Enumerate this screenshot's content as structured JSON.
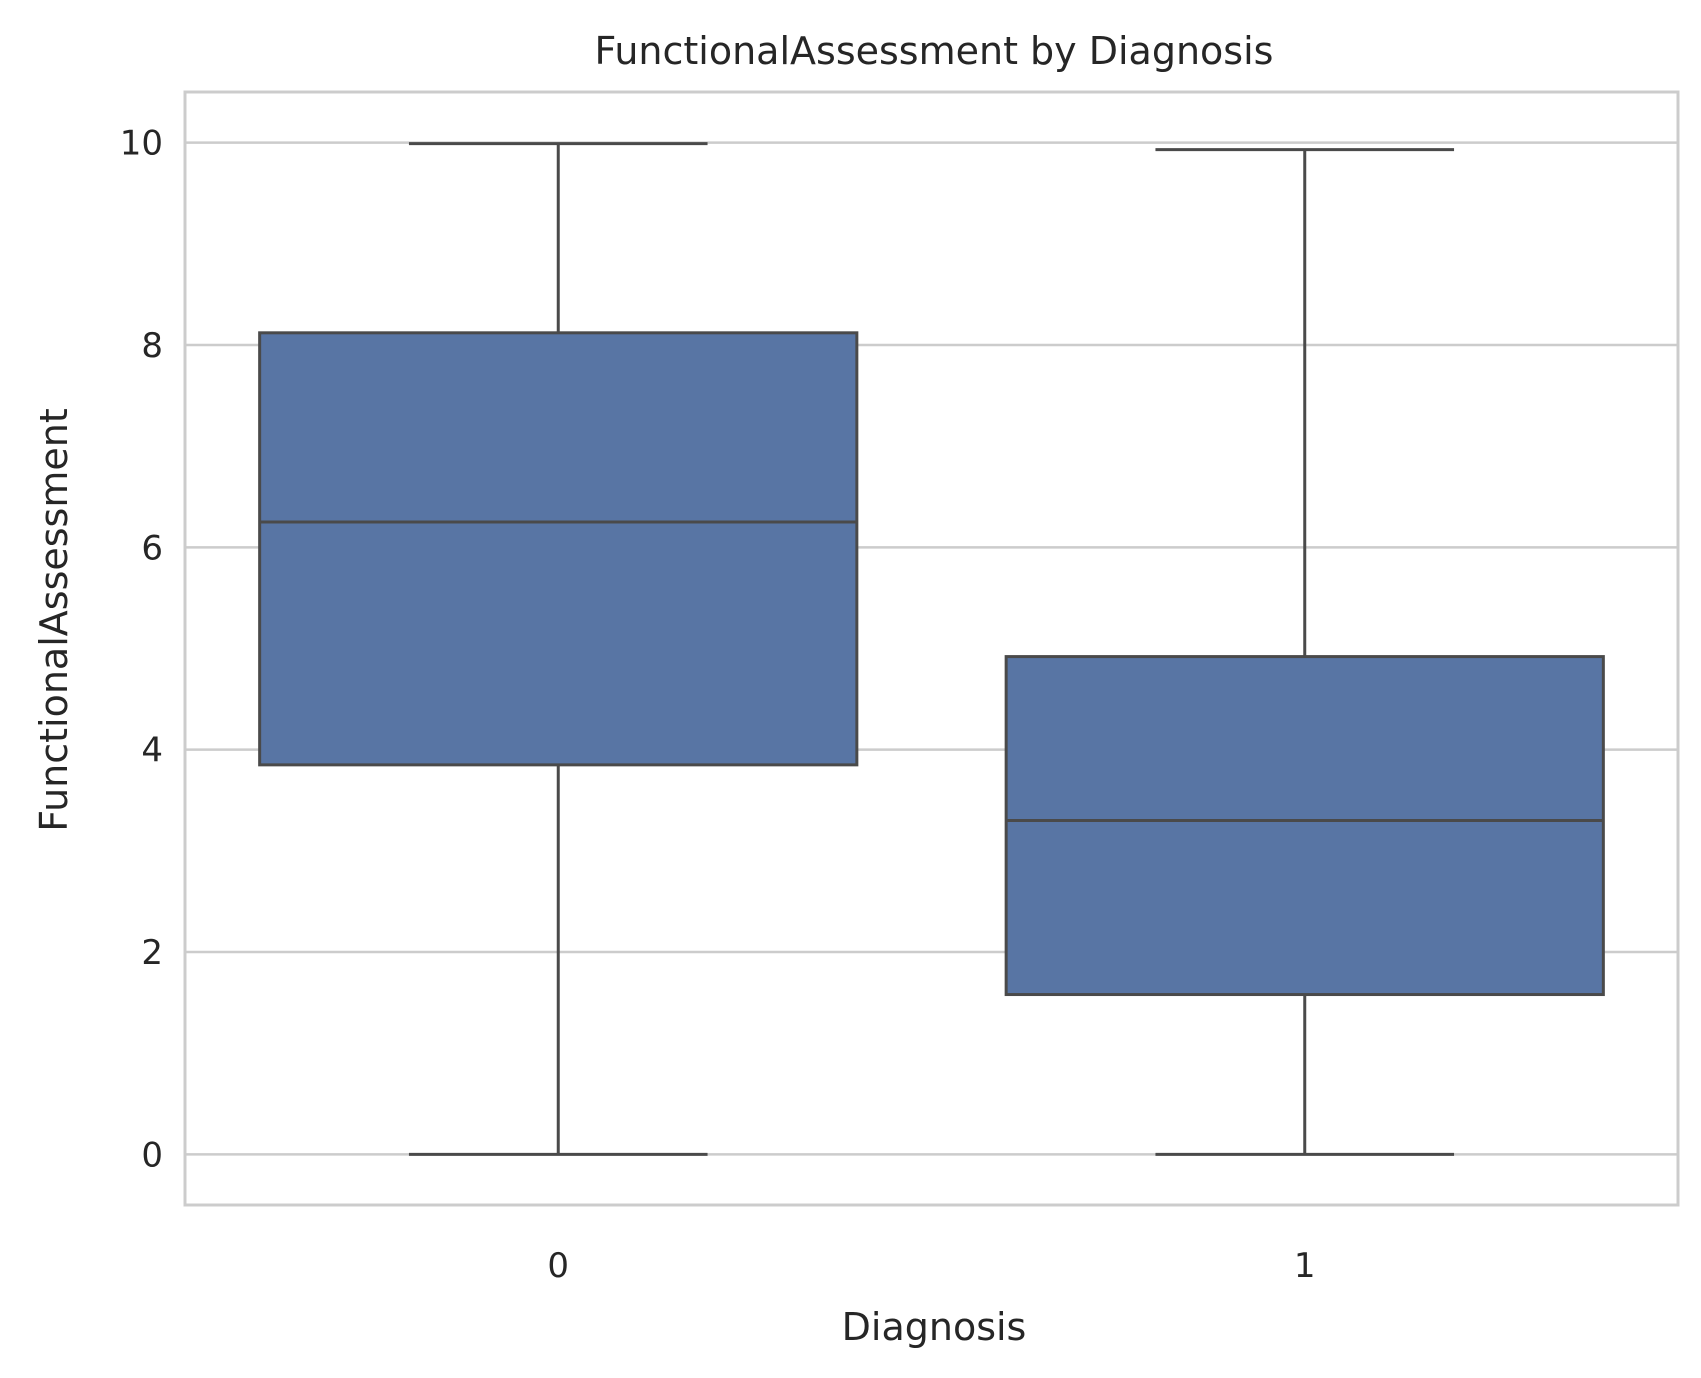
{
  "chart_data": {
    "type": "box",
    "title": "FunctionalAssessment by Diagnosis",
    "xlabel": "Diagnosis",
    "ylabel": "FunctionalAssessment",
    "categories": [
      "0",
      "1"
    ],
    "ylim": [
      -0.5,
      10.5
    ],
    "yticks": [
      0,
      2,
      4,
      6,
      8,
      10
    ],
    "ytick_labels": [
      "0",
      "2",
      "4",
      "6",
      "8",
      "10"
    ],
    "grid": true,
    "boxes": [
      {
        "category": "0",
        "whisker_low": 0.0,
        "q1": 3.85,
        "median": 6.25,
        "q3": 8.12,
        "whisker_high": 9.99
      },
      {
        "category": "1",
        "whisker_low": 0.0,
        "q1": 1.58,
        "median": 3.3,
        "q3": 4.92,
        "whisker_high": 9.93
      }
    ],
    "colors": {
      "box_fill": "#5875a4",
      "line": "#4a4a4a",
      "grid": "#cccccc",
      "frame": "#cccccc"
    }
  }
}
